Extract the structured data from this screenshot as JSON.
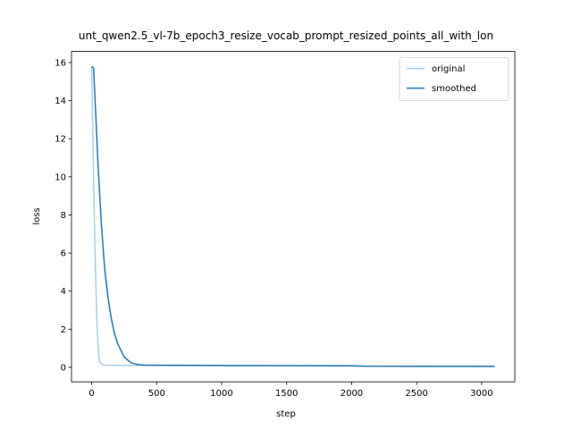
{
  "chart_data": {
    "type": "line",
    "title": "unt_qwen2.5_vl-7b_epoch3_resize_vocab_prompt_resized_points_all_with_lon",
    "x_label": "step",
    "y_label": "loss",
    "xlim": [
      -155,
      3255
    ],
    "ylim": [
      -0.76,
      16.58
    ],
    "xticks": [
      0,
      500,
      1000,
      1500,
      2000,
      2500,
      3000
    ],
    "yticks": [
      0,
      2,
      4,
      6,
      8,
      10,
      12,
      14,
      16
    ],
    "legend": "upper right",
    "series": [
      {
        "name": "original",
        "color": "#a6cee3",
        "x": [
          0,
          10,
          20,
          30,
          40,
          50,
          60,
          80,
          100,
          200,
          500,
          1000,
          1500,
          2000,
          2500,
          3100
        ],
        "values": [
          15.8,
          12,
          8,
          5,
          2.5,
          1,
          0.3,
          0.15,
          0.12,
          0.1,
          0.1,
          0.09,
          0.08,
          0.07,
          0.05,
          0.04
        ]
      },
      {
        "name": "smoothed",
        "color": "#1f78b4",
        "x": [
          0,
          15,
          30,
          50,
          75,
          100,
          125,
          150,
          175,
          200,
          250,
          300,
          350,
          400,
          500,
          1000,
          1100,
          1500,
          2000,
          2100,
          2500,
          3100
        ],
        "values": [
          15.8,
          15.7,
          13.5,
          10.5,
          7.5,
          5.2,
          3.7,
          2.6,
          1.8,
          1.25,
          0.55,
          0.25,
          0.15,
          0.12,
          0.11,
          0.1,
          0.09,
          0.09,
          0.08,
          0.06,
          0.05,
          0.05
        ]
      }
    ]
  }
}
